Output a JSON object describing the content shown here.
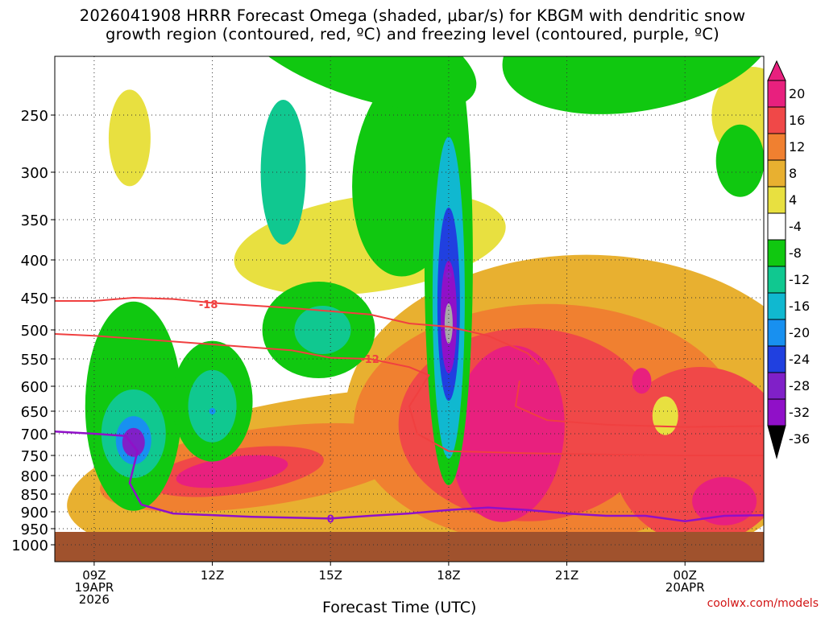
{
  "title": {
    "line1": "2026041908 HRRR Forecast Omega (shaded, μbar/s) for KBGM with dendritic snow",
    "line2": "growth region (contoured, red, ºC) and freezing level (contoured, purple, ºC)"
  },
  "credit": "coolwx.com/models",
  "chart_data": {
    "type": "heatmap",
    "xlabel": "Forecast Time (UTC)",
    "ylabel": "",
    "x_ticks": [
      {
        "hour": 9,
        "label": [
          "09Z",
          "19APR",
          "2026"
        ]
      },
      {
        "hour": 12,
        "label": [
          "12Z"
        ]
      },
      {
        "hour": 15,
        "label": [
          "15Z"
        ]
      },
      {
        "hour": 18,
        "label": [
          "18Z"
        ]
      },
      {
        "hour": 21,
        "label": [
          "21Z"
        ]
      },
      {
        "hour": 24,
        "label": [
          "00Z",
          "20APR"
        ]
      }
    ],
    "xlim": [
      8,
      26
    ],
    "y_ticks": [
      250,
      300,
      350,
      400,
      450,
      500,
      550,
      600,
      650,
      700,
      750,
      800,
      850,
      900,
      950,
      1000
    ],
    "ylim": [
      1050,
      200
    ],
    "surface_pressure": 960,
    "colorbar": {
      "labels": [
        "20",
        "16",
        "12",
        "8",
        "4",
        "-4",
        "-8",
        "-12",
        "-16",
        "-20",
        "-24",
        "-28",
        "-32",
        "-36"
      ],
      "colors": [
        "#e8207e",
        "#f04848",
        "#f08030",
        "#e8b030",
        "#e8e040",
        "#ffffff",
        "#10c810",
        "#10c890",
        "#10b8d0",
        "#1890f0",
        "#2040e0",
        "#8020c8",
        "#9010c8",
        "#a8a8a8"
      ]
    },
    "omega_features": [
      {
        "name": "strong-ascent-core",
        "hour": 18.0,
        "pressure": 480,
        "value": -36
      },
      {
        "name": "ascent-plume-18z",
        "hour": 18.0,
        "pressure": 420,
        "value": -24
      },
      {
        "name": "ascent-09z",
        "hour": 10.0,
        "pressure": 720,
        "value": -24
      },
      {
        "name": "ascent-12z",
        "hour": 12.0,
        "pressure": 650,
        "value": -16
      },
      {
        "name": "descent-low-level",
        "hour": 12.5,
        "pressure": 800,
        "value": 20
      },
      {
        "name": "descent-19z",
        "hour": 19.5,
        "pressure": 700,
        "value": 20
      },
      {
        "name": "descent-25z",
        "hour": 25.0,
        "pressure": 870,
        "value": 20
      }
    ],
    "contours": {
      "dgz": [
        {
          "label": "-18",
          "color": "#f04040",
          "points": [
            [
              8,
              455
            ],
            [
              9,
              455
            ],
            [
              10,
              450
            ],
            [
              11,
              452
            ],
            [
              12,
              458
            ],
            [
              13,
              462
            ],
            [
              14,
              466
            ],
            [
              16,
              476
            ],
            [
              17,
              490
            ],
            [
              18,
              495
            ],
            [
              19,
              510
            ],
            [
              20,
              540
            ],
            [
              20.3,
              560
            ]
          ],
          "label_at": [
            11.9,
            460
          ]
        },
        {
          "label": "-12",
          "color": "#f04040",
          "points": [
            [
              8,
              507
            ],
            [
              9,
              510
            ],
            [
              10,
              515
            ],
            [
              11,
              520
            ],
            [
              12,
              525
            ],
            [
              14,
              535
            ],
            [
              15,
              548
            ],
            [
              16,
              550
            ],
            [
              17,
              565
            ],
            [
              17.5,
              580
            ],
            [
              17,
              640
            ],
            [
              17.2,
              700
            ],
            [
              18,
              740
            ],
            [
              20,
              745
            ],
            [
              22,
              748
            ],
            [
              24,
              750
            ],
            [
              26,
              750
            ]
          ],
          "label_at": [
            16.0,
            550
          ]
        },
        {
          "label": "",
          "color": "#f04040",
          "points": [
            [
              19.8,
              590
            ],
            [
              19.7,
              640
            ],
            [
              20.5,
              670
            ],
            [
              22,
              680
            ],
            [
              24,
              685
            ],
            [
              26,
              683
            ]
          ],
          "label_at": null
        }
      ],
      "freezing_level": {
        "label": "0",
        "color": "#9010c8",
        "points": [
          [
            8,
            695
          ],
          [
            9,
            700
          ],
          [
            9.8,
            705
          ],
          [
            10.1,
            740
          ],
          [
            9.9,
            820
          ],
          [
            10.2,
            880
          ],
          [
            11,
            905
          ],
          [
            13,
            915
          ],
          [
            15,
            920
          ],
          [
            16,
            912
          ],
          [
            17,
            905
          ],
          [
            18,
            895
          ],
          [
            19,
            888
          ],
          [
            20,
            895
          ],
          [
            21,
            905
          ],
          [
            22,
            912
          ],
          [
            23,
            912
          ],
          [
            24,
            928
          ],
          [
            25,
            912
          ],
          [
            26,
            910
          ]
        ],
        "label_at": [
          15.0,
          920
        ]
      }
    }
  }
}
